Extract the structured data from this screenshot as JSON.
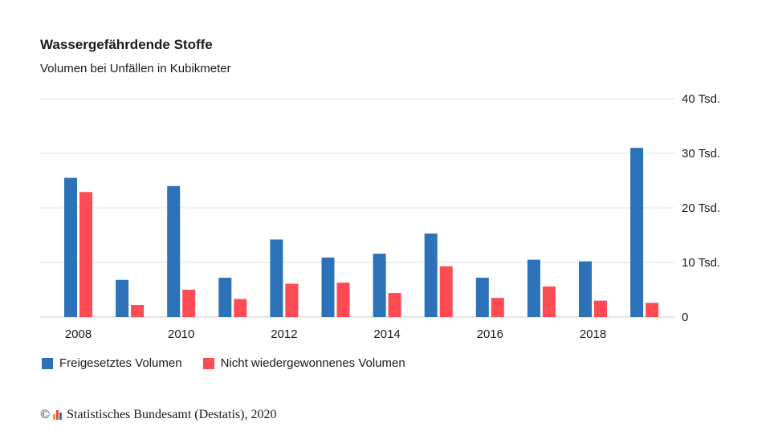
{
  "chart_data": {
    "type": "bar",
    "title": "Wassergefährdende Stoffe",
    "subtitle": "Volumen bei Unfällen in Kubikmeter",
    "x": [
      2008,
      2009,
      2010,
      2011,
      2012,
      2013,
      2014,
      2015,
      2016,
      2017,
      2018,
      2019
    ],
    "x_tick_labels": [
      "2008",
      "2010",
      "2012",
      "2014",
      "2016",
      "2018"
    ],
    "x_tick_values": [
      2008,
      2010,
      2012,
      2014,
      2016,
      2018
    ],
    "series": [
      {
        "name": "Freigesetztes Volumen",
        "color": "#2c72b8",
        "values": [
          25500,
          6800,
          24000,
          7200,
          14200,
          10900,
          11600,
          15300,
          7200,
          10500,
          10200,
          31000
        ]
      },
      {
        "name": "Nicht wiedergewonnenes Volumen",
        "color": "#fe4b54",
        "values": [
          22900,
          2200,
          5000,
          3300,
          6100,
          6300,
          4400,
          9300,
          3500,
          5600,
          3000,
          2600
        ]
      }
    ],
    "ylim": [
      0,
      40000
    ],
    "y_ticks": [
      0,
      10000,
      20000,
      30000,
      40000
    ],
    "y_tick_labels": [
      "0",
      "10 Tsd.",
      "20 Tsd.",
      "30 Tsd.",
      "40 Tsd."
    ],
    "y_axis_side": "right",
    "grid": true,
    "legend_position": "bottom-left"
  },
  "source": {
    "copyright": "©",
    "text": "Statistisches Bundesamt (Destatis), 2020",
    "logo_colors": [
      "#e8a21b",
      "#e34b3c",
      "#2c72b8"
    ]
  }
}
